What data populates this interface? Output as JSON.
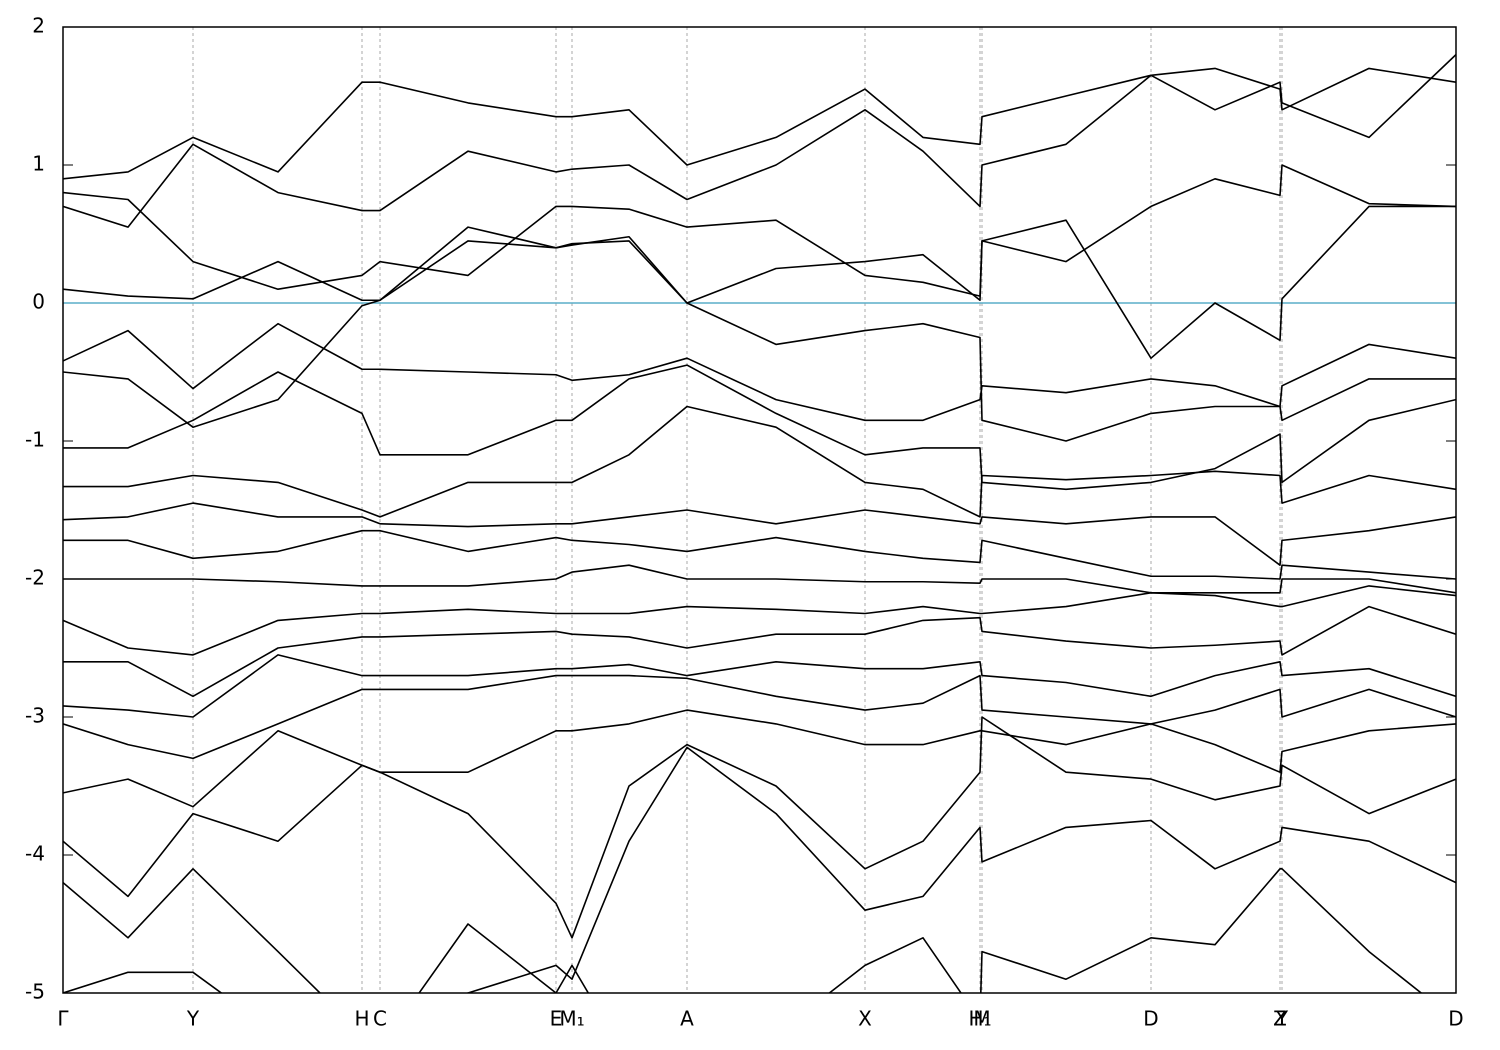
{
  "chart_data": {
    "type": "line",
    "x": [
      0,
      65,
      130,
      215,
      299,
      317,
      405,
      493,
      509,
      566,
      624,
      713,
      802,
      860,
      917,
      919,
      1003,
      1088,
      1152,
      1217,
      1219,
      1306,
      1393
    ],
    "xlim": [
      0,
      1393
    ],
    "xticks": [
      {
        "value": 0,
        "label": "Γ"
      },
      {
        "value": 130,
        "label": "Y"
      },
      {
        "value": 299,
        "label": "H"
      },
      {
        "value": 317,
        "label": "C"
      },
      {
        "value": 493,
        "label": "E"
      },
      {
        "value": 509,
        "label": "M₁"
      },
      {
        "value": 624,
        "label": "A"
      },
      {
        "value": 802,
        "label": "X"
      },
      {
        "value": 917,
        "label": "H₁"
      },
      {
        "value": 919,
        "label": "M"
      },
      {
        "value": 1088,
        "label": "D"
      },
      {
        "value": 1217,
        "label": "Z"
      },
      {
        "value": 1219,
        "label": "Y"
      },
      {
        "value": 1393,
        "label": "D"
      }
    ],
    "ylim": [
      -5,
      2
    ],
    "yticks": [
      2,
      1,
      0,
      -1,
      -2,
      -3,
      -4,
      -5
    ],
    "color": "#000000",
    "grid": true,
    "hline": {
      "y": 0,
      "color": "#5aaec8"
    },
    "series": [
      {
        "values": [
          0.1,
          0.05,
          0.03,
          0.3,
          0.02,
          0.02,
          0.55,
          0.4,
          0.43,
          0.45,
          0.0,
          0.25,
          0.3,
          0.35,
          0.02,
          0.45,
          0.6,
          -0.4,
          0.0,
          -0.27,
          0.03,
          0.7,
          0.7
        ]
      },
      {
        "values": [
          -0.42,
          -0.2,
          -0.62,
          -0.15,
          -0.48,
          -0.48,
          -0.5,
          -0.52,
          -0.56,
          -0.52,
          -0.4,
          -0.7,
          -0.85,
          -0.85,
          -0.7,
          -0.6,
          -0.65,
          -0.55,
          -0.6,
          -0.75,
          -0.6,
          -0.3,
          -0.4
        ]
      },
      {
        "values": [
          -0.5,
          -0.55,
          -0.9,
          -0.7,
          -0.02,
          0.02,
          0.45,
          0.4,
          0.42,
          0.48,
          0.0,
          -0.3,
          -0.2,
          -0.15,
          -0.25,
          -0.85,
          -1.0,
          -0.8,
          -0.75,
          -0.75,
          -0.85,
          -0.55,
          -0.55
        ]
      },
      {
        "values": [
          0.7,
          0.55,
          1.15,
          0.8,
          0.67,
          0.67,
          1.1,
          0.95,
          0.97,
          1.0,
          0.75,
          1.0,
          1.4,
          1.1,
          0.7,
          1.0,
          1.15,
          1.65,
          1.4,
          1.6,
          1.45,
          1.2,
          1.8
        ]
      },
      {
        "values": [
          0.9,
          0.95,
          1.2,
          0.95,
          1.6,
          1.6,
          1.45,
          1.35,
          1.35,
          1.4,
          1.0,
          1.2,
          1.55,
          1.2,
          1.15,
          1.35,
          1.5,
          1.65,
          1.7,
          1.55,
          1.4,
          1.7,
          1.6
        ]
      },
      {
        "values": [
          0.8,
          0.75,
          0.3,
          0.1,
          0.2,
          0.3,
          0.2,
          0.7,
          0.7,
          0.68,
          0.55,
          0.6,
          0.2,
          0.15,
          0.05,
          0.45,
          0.3,
          0.7,
          0.9,
          0.78,
          1.0,
          0.72,
          0.7
        ]
      },
      {
        "values": [
          -1.05,
          -1.05,
          -0.85,
          -0.5,
          -0.8,
          -1.1,
          -1.1,
          -0.85,
          -0.85,
          -0.55,
          -0.45,
          -0.8,
          -1.1,
          -1.05,
          -1.05,
          -1.3,
          -1.35,
          -1.3,
          -1.2,
          -0.95,
          -1.3,
          -0.85,
          -0.7
        ]
      },
      {
        "values": [
          -1.33,
          -1.33,
          -1.25,
          -1.3,
          -1.5,
          -1.55,
          -1.3,
          -1.3,
          -1.3,
          -1.1,
          -0.75,
          -0.9,
          -1.3,
          -1.35,
          -1.55,
          -1.25,
          -1.28,
          -1.25,
          -1.22,
          -1.25,
          -1.45,
          -1.25,
          -1.35
        ]
      },
      {
        "values": [
          -1.57,
          -1.55,
          -1.45,
          -1.55,
          -1.55,
          -1.6,
          -1.62,
          -1.6,
          -1.6,
          -1.55,
          -1.5,
          -1.6,
          -1.5,
          -1.55,
          -1.6,
          -1.55,
          -1.6,
          -1.55,
          -1.55,
          -1.9,
          -1.72,
          -1.65,
          -1.55
        ]
      },
      {
        "values": [
          -1.72,
          -1.72,
          -1.85,
          -1.8,
          -1.65,
          -1.65,
          -1.8,
          -1.7,
          -1.72,
          -1.75,
          -1.8,
          -1.7,
          -1.8,
          -1.85,
          -1.88,
          -1.72,
          -1.85,
          -1.98,
          -1.98,
          -2.0,
          -1.9,
          -1.95,
          -2.0
        ]
      },
      {
        "values": [
          -2.0,
          -2.0,
          -2.0,
          -2.02,
          -2.05,
          -2.05,
          -2.05,
          -2.0,
          -1.95,
          -1.9,
          -2.0,
          -2.0,
          -2.02,
          -2.02,
          -2.03,
          -2.0,
          -2.0,
          -2.1,
          -2.1,
          -2.1,
          -2.0,
          -2.0,
          -2.1
        ]
      },
      {
        "values": [
          -2.3,
          -2.5,
          -2.55,
          -2.3,
          -2.25,
          -2.25,
          -2.22,
          -2.25,
          -2.25,
          -2.25,
          -2.2,
          -2.22,
          -2.25,
          -2.2,
          -2.25,
          -2.25,
          -2.2,
          -2.1,
          -2.12,
          -2.2,
          -2.2,
          -2.05,
          -2.12
        ]
      },
      {
        "values": [
          -2.6,
          -2.6,
          -2.85,
          -2.5,
          -2.42,
          -2.42,
          -2.4,
          -2.38,
          -2.4,
          -2.42,
          -2.5,
          -2.4,
          -2.4,
          -2.3,
          -2.28,
          -2.38,
          -2.45,
          -2.5,
          -2.48,
          -2.45,
          -2.55,
          -2.2,
          -2.4
        ]
      },
      {
        "values": [
          -2.92,
          -2.95,
          -3.0,
          -2.55,
          -2.7,
          -2.7,
          -2.7,
          -2.65,
          -2.65,
          -2.62,
          -2.7,
          -2.6,
          -2.65,
          -2.65,
          -2.6,
          -2.7,
          -2.75,
          -2.85,
          -2.7,
          -2.6,
          -2.7,
          -2.65,
          -2.85
        ]
      },
      {
        "values": [
          -3.05,
          -3.2,
          -3.3,
          -3.05,
          -2.8,
          -2.8,
          -2.8,
          -2.7,
          -2.7,
          -2.7,
          -2.72,
          -2.85,
          -2.95,
          -2.9,
          -2.7,
          -2.95,
          -3.0,
          -3.05,
          -2.95,
          -2.8,
          -3.0,
          -2.8,
          -3.0
        ]
      },
      {
        "values": [
          -3.55,
          -3.45,
          -3.65,
          -3.1,
          -3.35,
          -3.4,
          -3.4,
          -3.1,
          -3.1,
          -3.05,
          -2.95,
          -3.05,
          -3.2,
          -3.2,
          -3.1,
          -3.1,
          -3.2,
          -3.05,
          -3.2,
          -3.4,
          -3.25,
          -3.1,
          -3.05
        ]
      },
      {
        "values": [
          -3.9,
          -4.3,
          -3.7,
          -3.9,
          -3.35,
          -3.4,
          -3.7,
          -4.35,
          -4.6,
          -3.5,
          -3.2,
          -3.5,
          -4.1,
          -3.9,
          -3.4,
          -3.0,
          -3.4,
          -3.45,
          -3.6,
          -3.5,
          -3.35,
          -3.7,
          -3.45
        ]
      },
      {
        "values": [
          -4.2,
          -4.6,
          -4.1,
          -4.7,
          -5.3,
          -5.3,
          -5.0,
          -4.8,
          -4.9,
          -3.9,
          -3.22,
          -3.7,
          -4.4,
          -4.3,
          -3.8,
          -4.05,
          -3.8,
          -3.75,
          -4.1,
          -3.9,
          -3.8,
          -3.9,
          -4.2
        ]
      },
      {
        "values": [
          -5.0,
          -4.85,
          -4.85,
          -5.3,
          -5.5,
          -5.4,
          -4.5,
          -5.0,
          -4.8,
          -5.5,
          -5.5,
          -5.3,
          -4.8,
          -4.6,
          -5.2,
          -4.7,
          -4.9,
          -4.6,
          -4.65,
          -4.1,
          -4.1,
          -4.7,
          -5.2
        ]
      }
    ]
  }
}
